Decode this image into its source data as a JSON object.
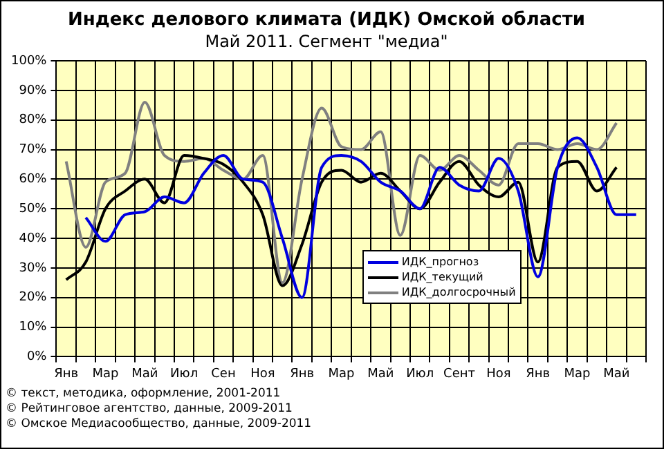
{
  "chart_data": {
    "type": "line",
    "title": "Индекс делового климата (ИДК) Омской области",
    "subtitle": "Май 2011. Сегмент \"медиа\"",
    "categories": [
      "Янв",
      null,
      "Мар",
      null,
      "Май",
      null,
      "Июл",
      null,
      "Сен",
      null,
      "Ноя",
      null,
      "Янв",
      null,
      "Мар",
      null,
      "Май",
      null,
      "Июл",
      null,
      "Сент",
      null,
      "Ноя",
      null,
      "Янв",
      null,
      "Мар",
      null,
      "Май",
      null
    ],
    "series": [
      {
        "name": "ИДК_прогноз",
        "color": "#0000e0",
        "values": [
          null,
          47,
          39,
          48,
          49,
          54,
          52,
          62,
          68,
          60,
          59,
          40,
          20,
          64,
          68,
          66,
          59,
          56,
          50,
          64,
          58,
          56,
          67,
          56,
          27,
          64,
          74,
          64,
          48,
          48
        ]
      },
      {
        "name": "ИДК_текущий",
        "color": "#000000",
        "values": [
          26,
          32,
          50,
          56,
          60,
          52,
          68,
          67,
          65,
          59,
          48,
          24,
          38,
          59,
          63,
          59,
          62,
          56,
          50,
          59,
          66,
          58,
          54,
          59,
          32,
          64,
          66,
          56,
          64,
          null
        ]
      },
      {
        "name": "ИДК_долгосрочный",
        "color": "#808080",
        "values": [
          66,
          37,
          59,
          62,
          86,
          68,
          66,
          67,
          63,
          60,
          68,
          25,
          60,
          84,
          71,
          70,
          76,
          41,
          68,
          63,
          68,
          63,
          58,
          72,
          72,
          70,
          72,
          70,
          79,
          null
        ]
      }
    ],
    "ylim": [
      0,
      100
    ],
    "yticks": [
      {
        "value": 0,
        "label": "0%"
      },
      {
        "value": 10,
        "label": "10%"
      },
      {
        "value": 20,
        "label": "20%"
      },
      {
        "value": 30,
        "label": "30%"
      },
      {
        "value": 40,
        "label": "40%"
      },
      {
        "value": 50,
        "label": "50%"
      },
      {
        "value": 60,
        "label": "60%"
      },
      {
        "value": 70,
        "label": "70%"
      },
      {
        "value": 80,
        "label": "80%"
      },
      {
        "value": 90,
        "label": "90%"
      },
      {
        "value": 100,
        "label": "100%"
      }
    ],
    "grid": true,
    "legend": "bottom right",
    "marker": "none",
    "line_style": "solid",
    "annotations": [
      "© текст, методика, оформление, 2001-2011",
      "© Рейтинговое агентство, данные, 2009-2011",
      "© Омское Медиасообщество, данные, 2009-2011"
    ]
  }
}
